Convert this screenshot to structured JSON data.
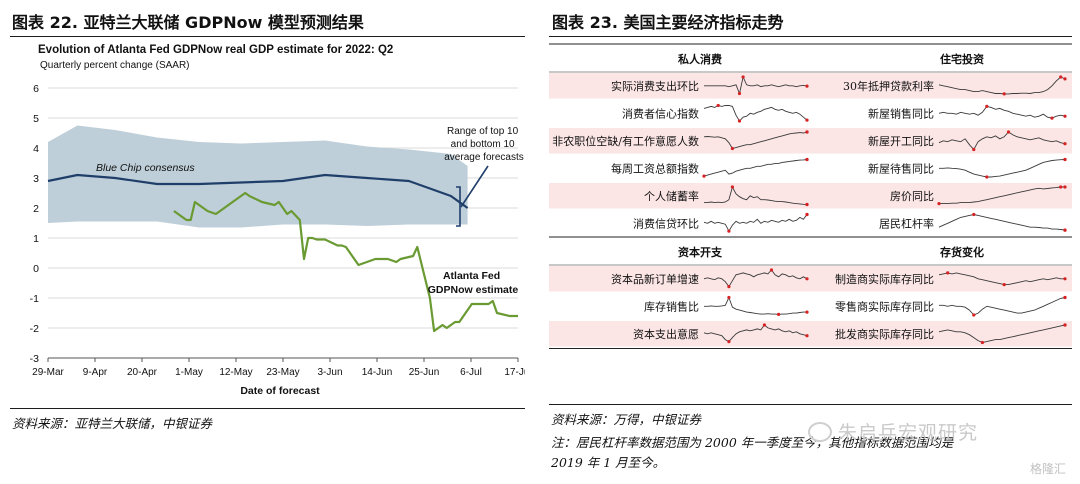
{
  "left_panel": {
    "figure_title": "图表 22. 亚特兰大联储 GDPNow 模型预测结果",
    "source": "资料来源：亚特兰大联储，中银证券"
  },
  "right_panel": {
    "figure_title": "图表 23. 美国主要经济指标走势",
    "source": "资料来源：万得，中银证券",
    "note_line1": "注：居民杠杆率数据范围为 2000 年一季度至今，其他指标数据范围均是",
    "note_line2": "2019 年 1 月至今。"
  },
  "watermark": {
    "text": "朱启兵宏观研究",
    "logo": "格隆汇"
  },
  "chart_data": [
    {
      "type": "line",
      "title": "Evolution of Atlanta Fed GDPNow real GDP estimate for 2022: Q2",
      "subtitle": "Quarterly percent change (SAAR)",
      "xlabel": "Date of forecast",
      "ylabel": "",
      "ylim": [
        -3,
        6
      ],
      "yticks": [
        "6",
        "5",
        "4",
        "3",
        "2",
        "1",
        "0",
        "-1",
        "-2",
        "-3"
      ],
      "xticks": [
        "29-Mar",
        "9-Apr",
        "20-Apr",
        "1-May",
        "12-May",
        "23-May",
        "3-Jun",
        "14-Jun",
        "25-Jun",
        "6-Jul",
        "17-Jul"
      ],
      "xlim": [
        0,
        112
      ],
      "grid": "horizontal",
      "colors": {
        "band": "#bfcfd9",
        "consensus": "#1f3f6a",
        "gdpnow": "#6a9a32"
      },
      "band": {
        "name": "Range of top 10 and bottom 10 average forecasts",
        "x": [
          0,
          7,
          16,
          26,
          36,
          46,
          56,
          66,
          76,
          86,
          96,
          100
        ],
        "upper": [
          4.2,
          4.75,
          4.6,
          4.35,
          4.2,
          4.15,
          4.2,
          4.25,
          4.05,
          3.95,
          3.8,
          3.4
        ],
        "lower": [
          1.5,
          1.55,
          1.55,
          1.55,
          1.35,
          1.35,
          1.45,
          1.45,
          1.4,
          1.45,
          1.45,
          1.45
        ]
      },
      "series": [
        {
          "name": "Blue Chip consensus",
          "x": [
            0,
            7,
            16,
            26,
            36,
            46,
            56,
            66,
            76,
            86,
            96,
            100
          ],
          "values": [
            2.9,
            3.1,
            3.0,
            2.8,
            2.8,
            2.85,
            2.9,
            3.1,
            3.0,
            2.9,
            2.4,
            2.0
          ]
        },
        {
          "name": "Atlanta Fed GDPNow estimate",
          "x": [
            30,
            33,
            34,
            35,
            38,
            40,
            41,
            44,
            47,
            48,
            51,
            54,
            55,
            57,
            58,
            60,
            61,
            62,
            63,
            64,
            66,
            69,
            70,
            71,
            74,
            78,
            81,
            83,
            84,
            87,
            88,
            91,
            92,
            94,
            95,
            97,
            98,
            101,
            102,
            104,
            105,
            106,
            107,
            110,
            112
          ],
          "values": [
            1.9,
            1.6,
            1.6,
            2.2,
            1.9,
            1.8,
            1.9,
            2.2,
            2.5,
            2.4,
            2.2,
            2.1,
            2.2,
            1.8,
            1.9,
            1.6,
            0.3,
            1.0,
            1.0,
            0.95,
            0.95,
            0.75,
            0.75,
            0.7,
            0.1,
            0.3,
            0.3,
            0.2,
            0.3,
            0.4,
            0.7,
            -1.0,
            -2.1,
            -1.9,
            -2.0,
            -1.8,
            -1.8,
            -1.2,
            -1.2,
            -1.2,
            -1.2,
            -1.1,
            -1.5,
            -1.6,
            -1.6
          ]
        }
      ],
      "annotations": [
        {
          "text_lines": [
            "Range of top 10",
            "and bottom 10",
            "average forecasts"
          ]
        },
        {
          "text": "Blue Chip consensus"
        },
        {
          "text_lines": [
            "Atlanta Fed",
            "GDPNow estimate"
          ]
        }
      ]
    },
    {
      "type": "table",
      "subtitle": "sparkline indicator table",
      "colors": {
        "row_shade": "#fbe5e5",
        "line": "#3a3a3a",
        "marker": "#d62222"
      },
      "groups": [
        {
          "left_header": "私人消费",
          "right_header": "住宅投资",
          "rows": [
            {
              "left": "实际消费支出环比",
              "left_spark": [
                0.5,
                0.5,
                0.5,
                0.5,
                0.5,
                0.5,
                0.5,
                0.45,
                0.5,
                0.55,
                0.1,
                0.95,
                0.55,
                0.5,
                0.5,
                0.55,
                0.45,
                0.5,
                0.5,
                0.55,
                0.5,
                0.45,
                0.5,
                0.55,
                0.5,
                0.5,
                0.45,
                0.5,
                0.52,
                0.48
              ],
              "right": "30年抵押贷款利率",
              "right_spark": [
                0.55,
                0.5,
                0.45,
                0.4,
                0.35,
                0.3,
                0.3,
                0.25,
                0.2,
                0.2,
                0.25,
                0.2,
                0.15,
                0.1,
                0.1,
                0.08,
                0.08,
                0.1,
                0.1,
                0.12,
                0.12,
                0.1,
                0.15,
                0.15,
                0.2,
                0.3,
                0.5,
                0.75,
                0.95,
                0.85
              ]
            },
            {
              "left": "消费者信心指数",
              "left_spark": [
                0.75,
                0.8,
                0.85,
                0.8,
                0.9,
                0.85,
                0.9,
                0.9,
                0.85,
                0.4,
                0.1,
                0.3,
                0.35,
                0.5,
                0.45,
                0.55,
                0.6,
                0.7,
                0.75,
                0.8,
                0.7,
                0.65,
                0.7,
                0.6,
                0.55,
                0.5,
                0.55,
                0.45,
                0.3,
                0.15
              ],
              "right": "新屋销售同比",
              "right_spark": [
                0.5,
                0.55,
                0.5,
                0.5,
                0.45,
                0.55,
                0.5,
                0.45,
                0.5,
                0.4,
                0.55,
                0.85,
                0.8,
                0.7,
                0.75,
                0.65,
                0.6,
                0.5,
                0.45,
                0.4,
                0.35,
                0.4,
                0.3,
                0.35,
                0.45,
                0.3,
                0.25,
                0.35,
                0.4,
                0.35
              ]
            },
            {
              "left": "非农职位空缺/有工作意愿人数",
              "left_spark": [
                0.7,
                0.72,
                0.7,
                0.68,
                0.7,
                0.65,
                0.6,
                0.4,
                0.1,
                0.15,
                0.2,
                0.25,
                0.3,
                0.3,
                0.35,
                0.4,
                0.45,
                0.5,
                0.55,
                0.6,
                0.65,
                0.7,
                0.75,
                0.8,
                0.85,
                0.88,
                0.9,
                0.92,
                0.9,
                0.95
              ],
              "right": "新屋开工同比",
              "right_spark": [
                0.4,
                0.5,
                0.45,
                0.55,
                0.5,
                0.45,
                0.6,
                0.3,
                0.05,
                0.45,
                0.6,
                0.7,
                0.65,
                0.75,
                0.6,
                0.7,
                0.95,
                0.8,
                0.7,
                0.65,
                0.6,
                0.55,
                0.6,
                0.65,
                0.55,
                0.5,
                0.45,
                0.5,
                0.4,
                0.35
              ]
            },
            {
              "left": "每周工资总额指数",
              "left_spark": [
                0.1,
                0.15,
                0.2,
                0.25,
                0.3,
                0.35,
                0.4,
                0.2,
                0.25,
                0.35,
                0.4,
                0.45,
                0.5,
                0.5,
                0.55,
                0.6,
                0.6,
                0.65,
                0.7,
                0.7,
                0.75,
                0.75,
                0.8,
                0.82,
                0.85,
                0.87,
                0.9,
                0.92,
                0.93,
                0.95
              ],
              "right": "新屋待售同比",
              "right_spark": [
                0.5,
                0.5,
                0.52,
                0.5,
                0.48,
                0.45,
                0.4,
                0.3,
                0.2,
                0.15,
                0.1,
                0.05,
                0.05,
                0.08,
                0.1,
                0.15,
                0.2,
                0.25,
                0.3,
                0.35,
                0.4,
                0.5,
                0.6,
                0.7,
                0.8,
                0.85,
                0.9,
                0.92,
                0.94,
                0.95
              ]
            },
            {
              "left": "个人储蓄率",
              "left_spark": [
                0.15,
                0.15,
                0.18,
                0.15,
                0.17,
                0.15,
                0.18,
                0.3,
                0.95,
                0.6,
                0.45,
                0.35,
                0.3,
                0.5,
                0.4,
                0.45,
                0.3,
                0.3,
                0.28,
                0.25,
                0.22,
                0.2,
                0.2,
                0.18,
                0.15,
                0.12,
                0.1,
                0.08,
                0.06,
                0.05
              ],
              "right": "房价同比",
              "right_spark": [
                0.1,
                0.1,
                0.1,
                0.12,
                0.12,
                0.15,
                0.15,
                0.15,
                0.18,
                0.2,
                0.25,
                0.3,
                0.35,
                0.4,
                0.45,
                0.5,
                0.55,
                0.6,
                0.65,
                0.7,
                0.75,
                0.8,
                0.85,
                0.88,
                0.85,
                0.87,
                0.9,
                0.92,
                0.95,
                0.95
              ]
            },
            {
              "left": "消费信贷环比",
              "left_spark": [
                0.55,
                0.5,
                0.6,
                0.5,
                0.55,
                0.5,
                0.45,
                0.1,
                0.4,
                0.6,
                0.5,
                0.55,
                0.5,
                0.6,
                0.55,
                0.7,
                0.5,
                0.6,
                0.55,
                0.65,
                0.6,
                0.55,
                0.65,
                0.6,
                0.7,
                0.6,
                0.65,
                0.8,
                0.7,
                0.95
              ],
              "right": "居民杠杆率",
              "right_spark": [
                0.3,
                0.4,
                0.5,
                0.6,
                0.7,
                0.8,
                0.85,
                0.9,
                0.95,
                0.9,
                0.85,
                0.8,
                0.75,
                0.7,
                0.65,
                0.6,
                0.55,
                0.5,
                0.45,
                0.4,
                0.35,
                0.3,
                0.3,
                0.28,
                0.25,
                0.25,
                0.2,
                0.2,
                0.18,
                0.15
              ]
            }
          ]
        },
        {
          "left_header": "资本开支",
          "right_header": "存货变化",
          "rows": [
            {
              "left": "资本品新订单增速",
              "left_spark": [
                0.5,
                0.55,
                0.5,
                0.45,
                0.55,
                0.5,
                0.35,
                0.1,
                0.4,
                0.7,
                0.75,
                0.8,
                0.75,
                0.7,
                0.6,
                0.7,
                0.75,
                0.8,
                0.75,
                0.95,
                0.7,
                0.6,
                0.75,
                0.7,
                0.6,
                0.65,
                0.55,
                0.5,
                0.6,
                0.5
              ],
              "right": "制造商实际库存同比",
              "right_spark": [
                0.7,
                0.75,
                0.8,
                0.75,
                0.8,
                0.75,
                0.7,
                0.65,
                0.6,
                0.5,
                0.45,
                0.4,
                0.35,
                0.3,
                0.25,
                0.2,
                0.2,
                0.25,
                0.3,
                0.35,
                0.4,
                0.35,
                0.4,
                0.45,
                0.5,
                0.45,
                0.5,
                0.55,
                0.5,
                0.5
              ]
            },
            {
              "left": "库存销售比",
              "left_spark": [
                0.5,
                0.5,
                0.52,
                0.5,
                0.5,
                0.52,
                0.55,
                0.95,
                0.45,
                0.35,
                0.3,
                0.25,
                0.2,
                0.18,
                0.15,
                0.12,
                0.1,
                0.1,
                0.12,
                0.1,
                0.1,
                0.08,
                0.1,
                0.1,
                0.12,
                0.15,
                0.15,
                0.18,
                0.2,
                0.2
              ],
              "right": "零售商实际库存同比",
              "right_spark": [
                0.55,
                0.55,
                0.5,
                0.55,
                0.5,
                0.5,
                0.45,
                0.3,
                0.05,
                0.15,
                0.35,
                0.5,
                0.45,
                0.4,
                0.35,
                0.3,
                0.25,
                0.2,
                0.15,
                0.15,
                0.2,
                0.25,
                0.3,
                0.4,
                0.5,
                0.6,
                0.7,
                0.8,
                0.9,
                0.95
              ]
            },
            {
              "left": "资本支出意愿",
              "left_spark": [
                0.55,
                0.5,
                0.55,
                0.5,
                0.45,
                0.4,
                0.2,
                0.1,
                0.3,
                0.5,
                0.6,
                0.65,
                0.7,
                0.65,
                0.7,
                0.75,
                0.7,
                0.95,
                0.8,
                0.75,
                0.7,
                0.75,
                0.65,
                0.6,
                0.65,
                0.55,
                0.6,
                0.5,
                0.45,
                0.4
              ],
              "right": "批发商实际库存同比",
              "right_spark": [
                0.6,
                0.65,
                0.7,
                0.65,
                0.6,
                0.6,
                0.55,
                0.45,
                0.3,
                0.15,
                0.05,
                0.1,
                0.15,
                0.2,
                0.2,
                0.25,
                0.3,
                0.35,
                0.4,
                0.45,
                0.5,
                0.55,
                0.6,
                0.65,
                0.7,
                0.75,
                0.8,
                0.85,
                0.9,
                0.95
              ]
            }
          ]
        }
      ]
    }
  ]
}
